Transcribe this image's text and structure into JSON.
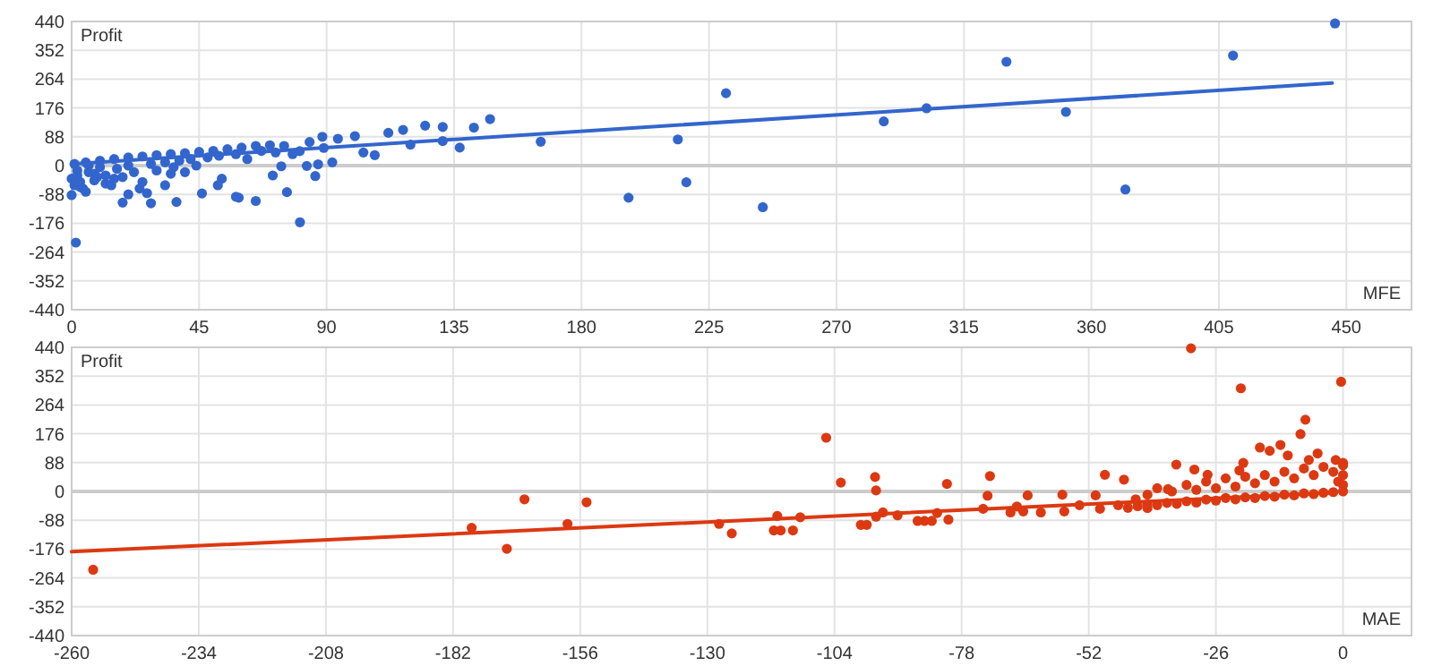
{
  "chart_data": [
    {
      "type": "scatter",
      "ylabel": "Profit",
      "xlabel": "MFE",
      "xlim": [
        0,
        473
      ],
      "xticks": [
        0,
        45,
        90,
        135,
        180,
        225,
        270,
        315,
        360,
        405,
        450
      ],
      "ylim": [
        -440,
        440
      ],
      "yticks": [
        -440,
        -352,
        -264,
        -176,
        -88,
        0,
        88,
        176,
        264,
        352,
        440
      ],
      "grid": true,
      "series": [
        {
          "marker": "circle",
          "color": "#3366cc",
          "x": [
            1.5,
            80.6,
            196.6,
            214,
            217,
            147.7,
            165.6,
            231,
            244,
            286.7,
            301.8,
            330,
            351,
            372,
            410,
            446,
            111.8,
            117,
            124.8,
            131,
            142,
            119.6,
            131,
            137,
            107,
            103,
            100,
            94,
            88.5,
            89,
            92,
            87,
            86,
            83,
            84,
            80.5,
            74,
            71,
            76,
            65,
            59,
            58,
            53,
            51.6,
            46,
            37,
            28,
            18,
            26.6,
            33,
            20,
            1,
            5,
            10,
            15,
            20,
            25,
            30,
            35,
            40,
            45,
            50,
            55,
            60,
            65,
            70,
            75,
            2,
            3,
            4,
            6,
            8,
            10,
            12,
            14,
            16,
            18,
            20,
            22,
            25,
            28,
            30,
            33,
            36,
            38,
            40,
            42,
            44,
            48,
            52,
            58,
            62,
            67,
            72,
            78,
            0,
            1,
            2,
            0,
            5,
            8,
            12,
            3,
            6,
            9,
            15,
            24,
            35
          ],
          "values": [
            -235,
            -173,
            -98,
            80,
            -51,
            142,
            73,
            221,
            -127,
            135,
            175,
            317,
            164,
            -73,
            336,
            434,
            100,
            109,
            122,
            118,
            116,
            64,
            75,
            55,
            32,
            40,
            90,
            82,
            88,
            54,
            10,
            4,
            -32,
            -1,
            72,
            44,
            -2,
            -30,
            -81,
            -108,
            -98,
            -95,
            -40,
            -60,
            -85,
            -111,
            -115,
            -113,
            -84,
            -60,
            -88,
            5,
            10,
            15,
            20,
            25,
            28,
            32,
            35,
            38,
            42,
            45,
            50,
            55,
            60,
            62,
            60,
            -30,
            -50,
            -70,
            -20,
            -45,
            -5,
            -30,
            -60,
            -10,
            -35,
            0,
            -20,
            -50,
            5,
            -15,
            10,
            -5,
            15,
            -20,
            20,
            0,
            25,
            30,
            35,
            20,
            45,
            40,
            35,
            -90,
            -60,
            -15,
            -40,
            -80,
            -25,
            -55,
            -65,
            0,
            -35,
            -40,
            -70,
            -25
          ]
        },
        {
          "type": "line",
          "color": "#3366cc",
          "x": [
            0,
            445
          ],
          "values": [
            5,
            252
          ]
        }
      ]
    },
    {
      "type": "scatter",
      "ylabel": "Profit",
      "xlabel": "MAE",
      "xlim": [
        -260,
        14
      ],
      "xticks": [
        -260,
        -234,
        -208,
        -182,
        -156,
        -130,
        -104,
        -78,
        -52,
        -26,
        0
      ],
      "ylim": [
        -440,
        440
      ],
      "yticks": [
        -440,
        -352,
        -264,
        -176,
        -88,
        0,
        88,
        176,
        264,
        352,
        440
      ],
      "grid": true,
      "series": [
        {
          "marker": "circle",
          "color": "#dc3912",
          "x": [
            -255.6,
            -178.2,
            -171,
            -167.4,
            -158.6,
            -154.7,
            -127.6,
            -125,
            -116.4,
            -115,
            -112.5,
            -115.7,
            -111,
            -105.7,
            -102.7,
            -98.6,
            -97.4,
            -95.7,
            -95.5,
            -95.5,
            -94.1,
            -91.1,
            -87,
            -85.6,
            -84.1,
            -83,
            -81,
            -80.7,
            -73.6,
            -72.7,
            -72.2,
            -68,
            -66.7,
            -64.5,
            -65.4,
            -61.8,
            -57.4,
            -57,
            -53.9,
            -50.6,
            -48.7,
            -49.7,
            -44.8,
            -46,
            -42.4,
            -40,
            -34.1,
            -35.8,
            -31.1,
            -30.4,
            -27.7,
            -20.9,
            -20.4,
            -21.2,
            -17,
            -15,
            -12.8,
            -11.3,
            -8.7,
            -7.7,
            -0.4,
            -7,
            -5.2,
            -1.5,
            0,
            -44,
            -42,
            -40,
            -38,
            -36,
            -34,
            -32,
            -30,
            -28,
            -26,
            -24,
            -22,
            -20,
            -18,
            -16,
            -14,
            -12,
            -10,
            -8,
            -6,
            -4,
            -2,
            0,
            -40,
            -38,
            -35,
            -32,
            -30,
            -28,
            -26,
            -24,
            -22,
            -20,
            -18,
            -16,
            -14,
            -12,
            -10,
            -8,
            -6,
            -4,
            -2,
            -1,
            0,
            0,
            0
          ],
          "values": [
            -239,
            -111,
            -175,
            -24,
            -99,
            -33,
            -99,
            -128,
            -119,
            -119,
            -119,
            -75,
            -79,
            164,
            27,
            -102,
            -102,
            44,
            3,
            -77,
            -64,
            -73,
            -90,
            -90,
            -90,
            -66,
            23,
            -86,
            -53,
            -13,
            47,
            -64,
            -46,
            -12,
            -61,
            -64,
            -10,
            -61,
            -42,
            -12,
            51,
            -53,
            36,
            -42,
            -24,
            -51,
            82,
            7,
            437,
            67,
            51,
            315,
            87,
            64,
            134,
            124,
            142,
            110,
            175,
            219,
            335,
            96,
            116,
            96,
            87,
            -50,
            -45,
            -40,
            -42,
            -35,
            -38,
            -30,
            -34,
            -25,
            -28,
            -20,
            -24,
            -18,
            -20,
            -14,
            -16,
            -10,
            -12,
            -6,
            -8,
            -4,
            -2,
            0,
            -10,
            10,
            0,
            20,
            5,
            30,
            10,
            40,
            15,
            45,
            25,
            50,
            30,
            60,
            40,
            70,
            50,
            75,
            60,
            30,
            80,
            50,
            20
          ]
        },
        {
          "type": "line",
          "color": "#dc3912",
          "x": [
            -260,
            -2
          ],
          "values": [
            -184,
            -4
          ]
        }
      ]
    }
  ]
}
